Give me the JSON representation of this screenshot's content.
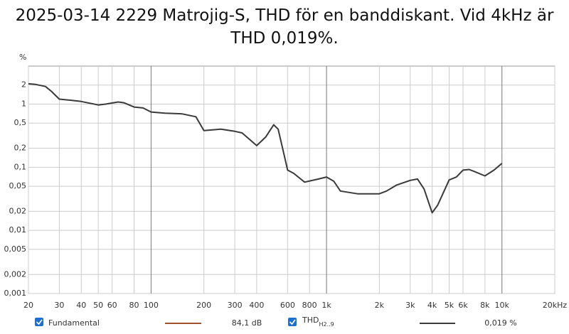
{
  "chart_data": {
    "type": "line",
    "title": "2025-03-14 2229 Matrojig-S, THD för en banddiskant. Vid 4kHz är THD 0,019%.",
    "y_unit": "%",
    "log_x": true,
    "log_y": true,
    "grid": true,
    "xlim": [
      20,
      20000
    ],
    "ylim": [
      0.001,
      4
    ],
    "xticks": [
      20,
      30,
      40,
      50,
      60,
      80,
      100,
      200,
      300,
      400,
      600,
      800,
      {
        "value": 1000,
        "label": "1k"
      },
      {
        "value": 2000,
        "label": "2k"
      },
      {
        "value": 3000,
        "label": "3k"
      },
      {
        "value": 4000,
        "label": "4k"
      },
      {
        "value": 5000,
        "label": "5k"
      },
      {
        "value": 6000,
        "label": "6k"
      },
      {
        "value": 8000,
        "label": "8k"
      },
      {
        "value": 10000,
        "label": "10k"
      },
      {
        "value": 20000,
        "label": "20kHz"
      }
    ],
    "yticks": [
      2,
      1,
      {
        "value": 0.5,
        "label": "0,5"
      },
      {
        "value": 0.2,
        "label": "0,2"
      },
      {
        "value": 0.1,
        "label": "0,1"
      },
      {
        "value": 0.05,
        "label": "0,05"
      },
      {
        "value": 0.02,
        "label": "0,02"
      },
      {
        "value": 0.01,
        "label": "0,01"
      },
      {
        "value": 0.005,
        "label": "0,005"
      },
      {
        "value": 0.002,
        "label": "0,002"
      },
      {
        "value": 0.001,
        "label": "0,001"
      }
    ],
    "series": [
      {
        "name": "THD",
        "color": "#3a3a3a",
        "x": [
          20,
          22,
          25,
          27,
          30,
          35,
          40,
          50,
          55,
          65,
          70,
          80,
          90,
          100,
          120,
          150,
          180,
          200,
          250,
          300,
          330,
          400,
          450,
          500,
          530,
          600,
          650,
          750,
          900,
          1000,
          1100,
          1200,
          1500,
          2000,
          2200,
          2500,
          3000,
          3300,
          3600,
          4000,
          4300,
          5000,
          5500,
          6000,
          6500,
          7000,
          8000,
          9000,
          10000
        ],
        "values": [
          2.1,
          2.05,
          1.9,
          1.6,
          1.2,
          1.15,
          1.1,
          0.97,
          1.0,
          1.08,
          1.05,
          0.9,
          0.87,
          0.75,
          0.72,
          0.7,
          0.63,
          0.38,
          0.4,
          0.37,
          0.35,
          0.22,
          0.3,
          0.47,
          0.4,
          0.09,
          0.08,
          0.058,
          0.065,
          0.07,
          0.06,
          0.042,
          0.038,
          0.038,
          0.042,
          0.052,
          0.062,
          0.065,
          0.045,
          0.019,
          0.025,
          0.063,
          0.07,
          0.09,
          0.092,
          0.085,
          0.073,
          0.09,
          0.115
        ]
      }
    ],
    "legend": [
      {
        "name": "Fundamental",
        "color": "#a0522d",
        "value_label": "84,1 dB"
      },
      {
        "name": "THD",
        "subscript": "H2..9",
        "color": "#3a3a3a",
        "value_label": "0,019 %"
      }
    ]
  }
}
